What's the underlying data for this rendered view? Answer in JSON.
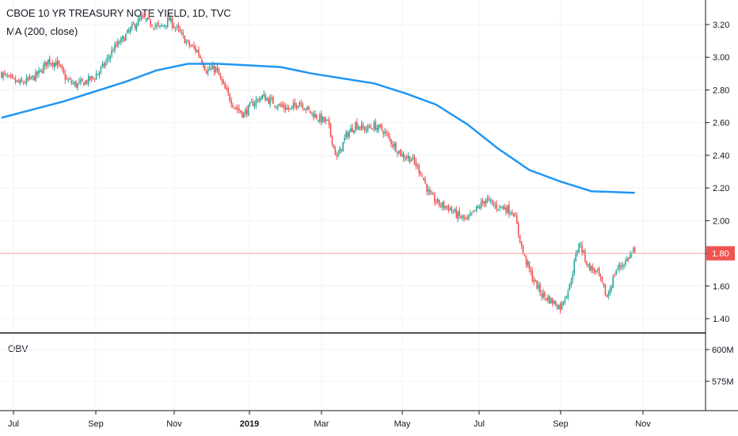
{
  "legend": {
    "title": "CBOE 10 YR TREASURY NOTE YIELD, 1D, TVC",
    "ma": "MA (200, close)",
    "obv": "OBV"
  },
  "colors": {
    "up": "#26a69a",
    "down": "#ef5350",
    "ma_line": "#2196f3",
    "last_price_line": "#f7a9a7",
    "last_price_badge": "#ef5350",
    "grid": "#f0f3fa",
    "axis": "#131722"
  },
  "chart_data": [
    {
      "type": "candlestick",
      "title": "CBOE 10 YR TREASURY NOTE YIELD, 1D, TVC",
      "y_ticks": [
        1.4,
        1.6,
        1.8,
        2.0,
        2.2,
        2.4,
        2.6,
        2.8,
        3.0,
        3.2
      ],
      "y_tick_labels": [
        "1.40",
        "1.60",
        "1.80",
        "2.00",
        "2.20",
        "2.40",
        "2.60",
        "2.80",
        "3.00",
        "3.20"
      ],
      "ylim": [
        1.32,
        3.34
      ],
      "x_labels": [
        "Jul",
        "Sep",
        "Nov",
        "2019",
        "Mar",
        "May",
        "Jul",
        "Sep",
        "Nov"
      ],
      "x_label_bold": [
        false,
        false,
        false,
        true,
        false,
        false,
        false,
        false,
        false
      ],
      "last_value": 1.8,
      "last_value_label": "1.80",
      "price_anchors": [
        [
          0,
          2.9
        ],
        [
          6,
          2.86
        ],
        [
          12,
          2.84
        ],
        [
          18,
          2.86
        ],
        [
          24,
          2.9
        ],
        [
          30,
          2.98
        ],
        [
          36,
          2.96
        ],
        [
          42,
          2.86
        ],
        [
          48,
          2.83
        ],
        [
          54,
          2.85
        ],
        [
          60,
          2.88
        ],
        [
          66,
          2.95
        ],
        [
          72,
          3.05
        ],
        [
          78,
          3.11
        ],
        [
          84,
          3.18
        ],
        [
          90,
          3.24
        ],
        [
          96,
          3.21
        ],
        [
          102,
          3.18
        ],
        [
          108,
          3.23
        ],
        [
          114,
          3.16
        ],
        [
          120,
          3.08
        ],
        [
          126,
          3.04
        ],
        [
          132,
          2.92
        ],
        [
          138,
          2.93
        ],
        [
          144,
          2.8
        ],
        [
          150,
          2.7
        ],
        [
          156,
          2.65
        ],
        [
          162,
          2.72
        ],
        [
          168,
          2.76
        ],
        [
          174,
          2.73
        ],
        [
          180,
          2.7
        ],
        [
          186,
          2.68
        ],
        [
          192,
          2.73
        ],
        [
          198,
          2.67
        ],
        [
          204,
          2.63
        ],
        [
          210,
          2.6
        ],
        [
          216,
          2.38
        ],
        [
          222,
          2.52
        ],
        [
          228,
          2.59
        ],
        [
          234,
          2.56
        ],
        [
          240,
          2.58
        ],
        [
          246,
          2.55
        ],
        [
          252,
          2.47
        ],
        [
          258,
          2.4
        ],
        [
          264,
          2.38
        ],
        [
          270,
          2.3
        ],
        [
          276,
          2.15
        ],
        [
          282,
          2.1
        ],
        [
          288,
          2.08
        ],
        [
          294,
          2.03
        ],
        [
          300,
          2.0
        ],
        [
          306,
          2.07
        ],
        [
          312,
          2.13
        ],
        [
          318,
          2.09
        ],
        [
          324,
          2.08
        ],
        [
          330,
          2.05
        ],
        [
          336,
          1.8
        ],
        [
          342,
          1.65
        ],
        [
          348,
          1.55
        ],
        [
          354,
          1.51
        ],
        [
          360,
          1.47
        ],
        [
          366,
          1.6
        ],
        [
          372,
          1.87
        ],
        [
          378,
          1.72
        ],
        [
          384,
          1.68
        ],
        [
          390,
          1.53
        ],
        [
          396,
          1.7
        ],
        [
          402,
          1.75
        ],
        [
          408,
          1.83
        ]
      ],
      "ma_series": [
        [
          0,
          2.63
        ],
        [
          20,
          2.68
        ],
        [
          40,
          2.73
        ],
        [
          60,
          2.79
        ],
        [
          80,
          2.85
        ],
        [
          100,
          2.92
        ],
        [
          120,
          2.96
        ],
        [
          140,
          2.96
        ],
        [
          160,
          2.95
        ],
        [
          180,
          2.94
        ],
        [
          200,
          2.9
        ],
        [
          220,
          2.87
        ],
        [
          240,
          2.84
        ],
        [
          260,
          2.78
        ],
        [
          280,
          2.71
        ],
        [
          300,
          2.59
        ],
        [
          320,
          2.44
        ],
        [
          340,
          2.31
        ],
        [
          360,
          2.24
        ],
        [
          380,
          2.18
        ],
        [
          408,
          2.17
        ]
      ]
    },
    {
      "type": "line",
      "title": "OBV",
      "y_ticks": [
        600,
        575
      ],
      "y_tick_labels": [
        "600M",
        "575M"
      ]
    }
  ]
}
